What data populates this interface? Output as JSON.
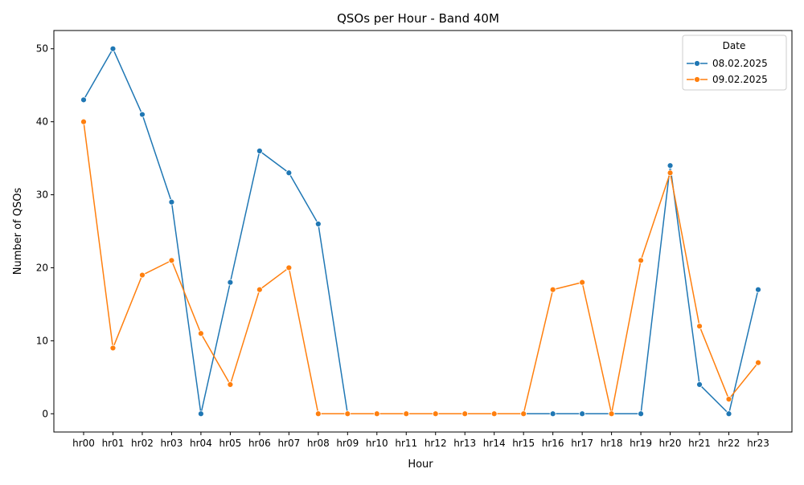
{
  "chart_data": {
    "type": "line",
    "title": "QSOs per Hour - Band 40M",
    "xlabel": "Hour",
    "ylabel": "Number of QSOs",
    "categories": [
      "hr00",
      "hr01",
      "hr02",
      "hr03",
      "hr04",
      "hr05",
      "hr06",
      "hr07",
      "hr08",
      "hr09",
      "hr10",
      "hr11",
      "hr12",
      "hr13",
      "hr14",
      "hr15",
      "hr16",
      "hr17",
      "hr18",
      "hr19",
      "hr20",
      "hr21",
      "hr22",
      "hr23"
    ],
    "ylim": [
      -2.5,
      52.5
    ],
    "yticks": [
      0,
      10,
      20,
      30,
      40,
      50
    ],
    "grid": false,
    "legend": {
      "title": "Date",
      "placement": "top-right"
    },
    "series": [
      {
        "name": "08.02.2025",
        "color": "#1f77b4",
        "marker": "circle",
        "values": [
          43,
          50,
          41,
          29,
          0,
          18,
          36,
          33,
          26,
          0,
          0,
          0,
          0,
          0,
          0,
          0,
          0,
          0,
          0,
          0,
          34,
          4,
          0,
          17
        ]
      },
      {
        "name": "09.02.2025",
        "color": "#ff7f0e",
        "marker": "circle",
        "values": [
          40,
          9,
          19,
          21,
          11,
          4,
          17,
          20,
          0,
          0,
          0,
          0,
          0,
          0,
          0,
          0,
          17,
          18,
          0,
          21,
          33,
          12,
          2,
          7
        ]
      }
    ]
  }
}
